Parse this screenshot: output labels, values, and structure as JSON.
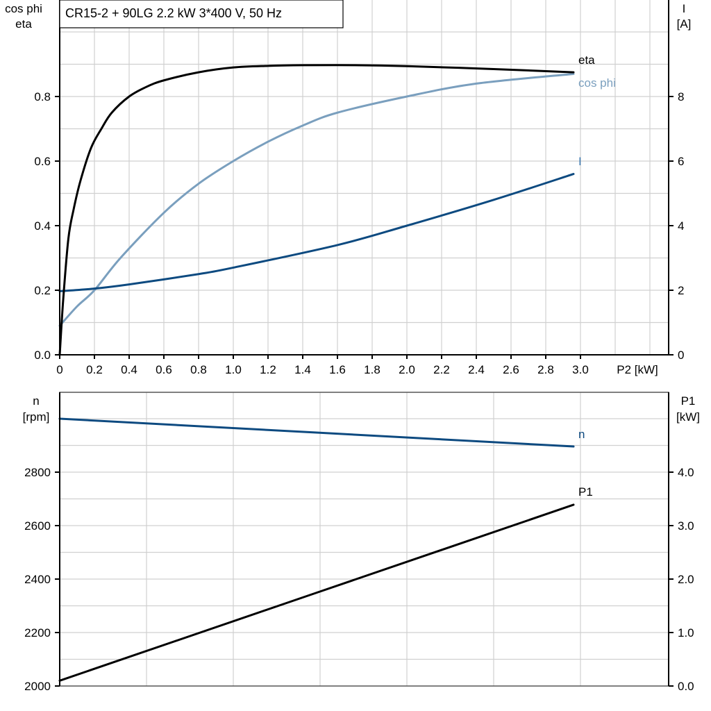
{
  "title": "CR15-2 + 90LG   2.2 kW   3*400 V, 50 Hz",
  "colors": {
    "eta": "#000000",
    "cos_phi": "#7a9fbe",
    "I": "#0d4a80",
    "n": "#0d4a80",
    "P1": "#000000"
  },
  "chart_data": [
    {
      "type": "line",
      "xlabel": "P2 [kW]",
      "ylabel_left": [
        "cos phi",
        "eta"
      ],
      "ylabel_right": [
        "I",
        "[A]"
      ],
      "xlim": [
        0,
        3.4
      ],
      "ylim_left": [
        0,
        1.0
      ],
      "ylim_right": [
        0,
        10
      ],
      "x_ticks": [
        "0",
        "0.2",
        "0.4",
        "0.6",
        "0.8",
        "1.0",
        "1.2",
        "1.4",
        "1.6",
        "1.8",
        "2.0",
        "2.2",
        "2.4",
        "2.6",
        "2.8",
        "3.0"
      ],
      "y_ticks_left": [
        "0.0",
        "0.2",
        "0.4",
        "0.6",
        "0.8"
      ],
      "y_ticks_right": [
        "0",
        "2",
        "4",
        "6",
        "8"
      ],
      "grid": true,
      "series": [
        {
          "name": "eta",
          "axis": "left",
          "x": [
            0,
            0.02,
            0.05,
            0.08,
            0.12,
            0.18,
            0.24,
            0.3,
            0.4,
            0.5,
            0.6,
            0.8,
            1.0,
            1.2,
            1.4,
            1.7,
            2.0,
            2.5,
            2.96
          ],
          "y": [
            0,
            0.17,
            0.36,
            0.45,
            0.54,
            0.64,
            0.7,
            0.75,
            0.8,
            0.83,
            0.85,
            0.875,
            0.89,
            0.895,
            0.897,
            0.897,
            0.894,
            0.885,
            0.875
          ]
        },
        {
          "name": "cos phi",
          "axis": "left",
          "x": [
            0,
            0.1,
            0.2,
            0.35,
            0.6,
            0.8,
            1.0,
            1.2,
            1.4,
            1.6,
            2.0,
            2.4,
            2.96
          ],
          "y": [
            0.09,
            0.15,
            0.2,
            0.3,
            0.44,
            0.53,
            0.6,
            0.66,
            0.71,
            0.75,
            0.8,
            0.84,
            0.87
          ]
        },
        {
          "name": "I",
          "axis": "right",
          "x": [
            0,
            0.2,
            0.4,
            0.8,
            1.0,
            1.6,
            2.0,
            2.5,
            2.96
          ],
          "y": [
            1.97,
            2.05,
            2.18,
            2.5,
            2.7,
            3.4,
            4.0,
            4.8,
            5.6
          ]
        }
      ]
    },
    {
      "type": "line",
      "ylabel_left": [
        "n",
        "[rpm]"
      ],
      "ylabel_right": [
        "P1",
        "[kW]"
      ],
      "xlim": [
        0,
        3.4
      ],
      "ylim_left": [
        2000,
        3100
      ],
      "ylim_right": [
        0,
        5.5
      ],
      "y_ticks_left": [
        "2000",
        "2200",
        "2400",
        "2600",
        "2800"
      ],
      "y_ticks_right": [
        "0.0",
        "1.0",
        "2.0",
        "3.0",
        "4.0"
      ],
      "grid": true,
      "series": [
        {
          "name": "n",
          "axis": "left",
          "x": [
            0,
            2.96
          ],
          "y": [
            3000,
            2896
          ]
        },
        {
          "name": "P1",
          "axis": "right",
          "x": [
            0,
            2.96
          ],
          "y": [
            0.1,
            3.39
          ]
        }
      ]
    }
  ]
}
